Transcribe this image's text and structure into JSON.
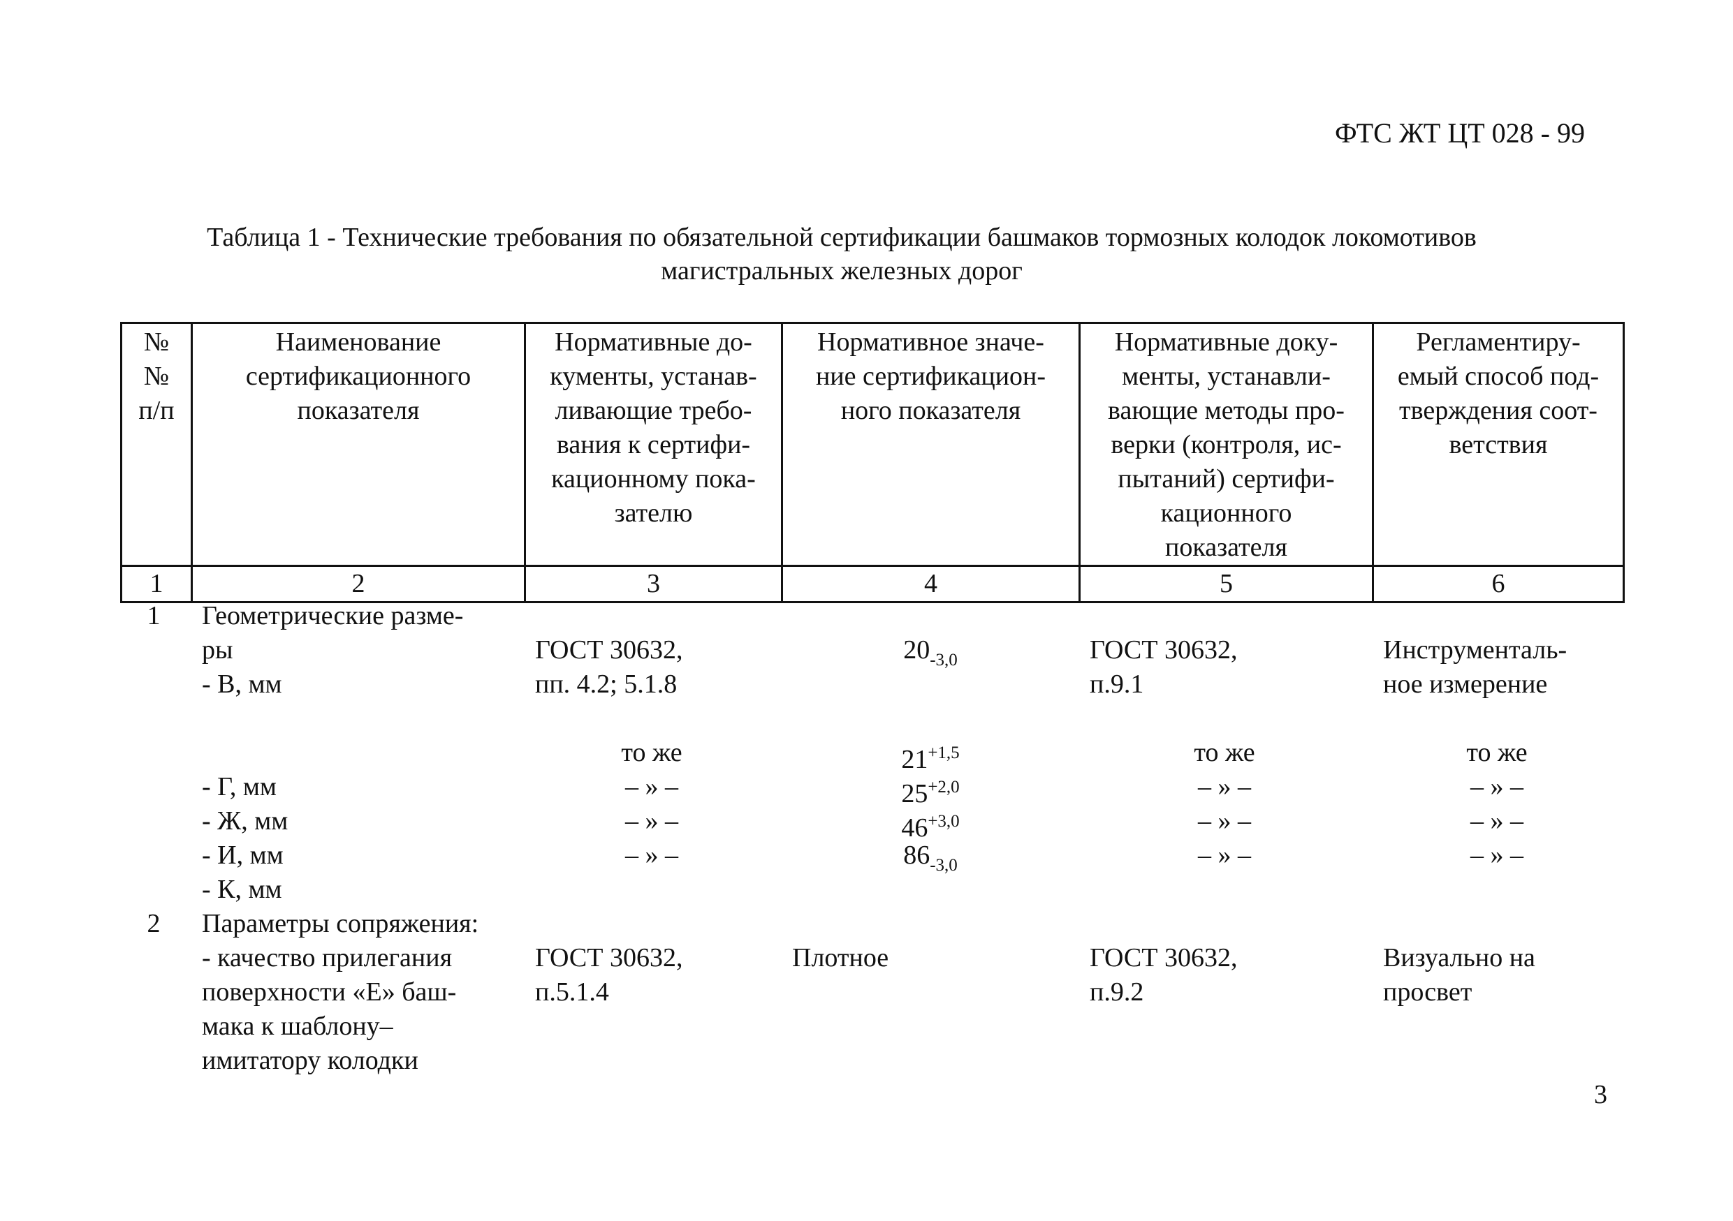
{
  "doc_code": "ФТС ЖТ ЦТ 028 - 99",
  "caption": {
    "line1": "Таблица 1 - Технические требования по обязательной сертификации башмаков тормозных колодок  локомотивов",
    "line2": "магистральных железных дорог"
  },
  "table": {
    "headers": [
      [
        "№",
        "№",
        "п/п"
      ],
      [
        "Наименование",
        "сертификационного",
        "показателя"
      ],
      [
        "Нормативные до-",
        "кументы, устанав-",
        "ливающие требо-",
        "вания к сертифи-",
        "кационному пока-",
        "зателю"
      ],
      [
        "Нормативное значе-",
        "ние сертификацион-",
        "ного показателя"
      ],
      [
        "Нормативные доку-",
        "менты, устанавли-",
        "вающие методы про-",
        "верки (контроля, ис-",
        "пытаний) сертифи-",
        "кационного",
        "показателя"
      ],
      [
        "Регламентиру-",
        "емый способ под-",
        "тверждения соот-",
        "ветствия"
      ]
    ],
    "column_numbers": [
      "1",
      "2",
      "3",
      "4",
      "5",
      "6"
    ],
    "rows": {
      "r1": {
        "num": "1",
        "name_lines": [
          "Геометрические разме-",
          "ры",
          "- В, мм"
        ],
        "doc_lines": [
          "ГОСТ 30632,",
          "пп. 4.2; 5.1.8"
        ],
        "value": {
          "base": "20",
          "lower": "-3,0"
        },
        "method_lines": [
          "ГОСТ 30632,",
          "п.9.1"
        ],
        "confirm_lines": [
          "Инструменталь-",
          "ное измерение"
        ]
      },
      "r1_sub": [
        {
          "name": "",
          "doc": "то же",
          "value": {
            "base": "21",
            "upper": "+1,5"
          },
          "method": "то же",
          "confirm": "то же"
        },
        {
          "name": "- Г, мм",
          "doc": "– » –",
          "value": {
            "base": "25",
            "upper": "+2,0"
          },
          "method": "– » –",
          "confirm": "– » –"
        },
        {
          "name": "- Ж, мм",
          "doc": "– » –",
          "value": {
            "base": "46",
            "upper": "+3,0"
          },
          "method": "– » –",
          "confirm": "– » –"
        },
        {
          "name": "- И, мм",
          "doc": "– » –",
          "value": {
            "base": "86",
            "lower": "-3,0"
          },
          "method": "– » –",
          "confirm": "– » –"
        },
        {
          "name": "- К, мм"
        }
      ],
      "r2": {
        "num": "2",
        "name_lines": [
          "Параметры сопряжения:",
          "- качество прилегания",
          "поверхности «Е» баш-",
          "мака к шаблону–",
          "имитатору  колодки"
        ],
        "doc_lines": [
          "ГОСТ 30632,",
          "п.5.1.4"
        ],
        "value": "Плотное",
        "method_lines": [
          "ГОСТ 30632,",
          "п.9.2"
        ],
        "confirm_lines": [
          "Визуально на",
          "просвет"
        ]
      }
    }
  },
  "page_number": "3"
}
